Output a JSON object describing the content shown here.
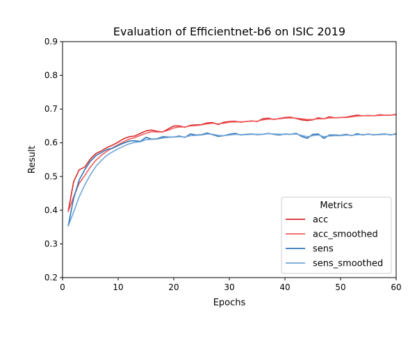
{
  "chart_data": {
    "type": "line",
    "title": "Evaluation of Efficientnet-b6 on ISIC 2019",
    "xlabel": "Epochs",
    "ylabel": "Result",
    "xlim": [
      0,
      60
    ],
    "ylim": [
      0.2,
      0.9
    ],
    "xticks": [
      0,
      10,
      20,
      30,
      40,
      50,
      60
    ],
    "yticks": [
      0.2,
      0.3,
      0.4,
      0.5,
      0.6,
      0.7,
      0.8,
      0.9
    ],
    "grid": false,
    "legend": {
      "title": "Metrics",
      "placement": "lower-right"
    },
    "x": [
      1,
      2,
      3,
      4,
      5,
      6,
      7,
      8,
      9,
      10,
      11,
      12,
      13,
      14,
      15,
      16,
      17,
      18,
      19,
      20,
      21,
      22,
      23,
      24,
      25,
      26,
      27,
      28,
      29,
      30,
      31,
      32,
      33,
      34,
      35,
      36,
      37,
      38,
      39,
      40,
      41,
      42,
      43,
      44,
      45,
      46,
      47,
      48,
      49,
      50,
      51,
      52,
      53,
      54,
      55,
      56,
      57,
      58,
      59,
      60
    ],
    "series": [
      {
        "name": "acc",
        "color": "#d62728",
        "values": [
          0.395,
          0.485,
          0.52,
          0.528,
          0.552,
          0.568,
          0.576,
          0.586,
          0.593,
          0.602,
          0.612,
          0.618,
          0.62,
          0.628,
          0.635,
          0.638,
          0.634,
          0.632,
          0.641,
          0.65,
          0.65,
          0.646,
          0.652,
          0.653,
          0.654,
          0.659,
          0.66,
          0.654,
          0.661,
          0.663,
          0.664,
          0.661,
          0.663,
          0.665,
          0.663,
          0.671,
          0.673,
          0.669,
          0.672,
          0.675,
          0.676,
          0.672,
          0.668,
          0.666,
          0.668,
          0.674,
          0.671,
          0.677,
          0.674,
          0.675,
          0.676,
          0.679,
          0.682,
          0.68,
          0.681,
          0.68,
          0.683,
          0.682,
          0.682,
          0.684
        ]
      },
      {
        "name": "acc_smoothed",
        "color": "#f0595b",
        "values": [
          0.395,
          0.44,
          0.48,
          0.503,
          0.528,
          0.548,
          0.563,
          0.575,
          0.585,
          0.594,
          0.603,
          0.611,
          0.615,
          0.622,
          0.628,
          0.633,
          0.632,
          0.632,
          0.637,
          0.644,
          0.647,
          0.647,
          0.65,
          0.651,
          0.653,
          0.656,
          0.658,
          0.656,
          0.658,
          0.661,
          0.662,
          0.662,
          0.663,
          0.664,
          0.664,
          0.668,
          0.67,
          0.67,
          0.671,
          0.673,
          0.674,
          0.673,
          0.671,
          0.669,
          0.669,
          0.671,
          0.671,
          0.674,
          0.674,
          0.675,
          0.675,
          0.677,
          0.679,
          0.68,
          0.68,
          0.68,
          0.681,
          0.682,
          0.682,
          0.683
        ]
      },
      {
        "name": "sens",
        "color": "#2f74b5",
        "values": [
          0.352,
          0.435,
          0.49,
          0.52,
          0.545,
          0.562,
          0.571,
          0.58,
          0.584,
          0.592,
          0.599,
          0.605,
          0.606,
          0.604,
          0.616,
          0.611,
          0.612,
          0.618,
          0.617,
          0.617,
          0.62,
          0.616,
          0.626,
          0.623,
          0.624,
          0.629,
          0.624,
          0.619,
          0.621,
          0.625,
          0.628,
          0.623,
          0.625,
          0.626,
          0.624,
          0.625,
          0.628,
          0.625,
          0.623,
          0.626,
          0.625,
          0.628,
          0.619,
          0.613,
          0.625,
          0.626,
          0.613,
          0.623,
          0.623,
          0.622,
          0.625,
          0.621,
          0.627,
          0.623,
          0.626,
          0.623,
          0.625,
          0.626,
          0.623,
          0.627
        ]
      },
      {
        "name": "sens_smoothed",
        "color": "#6fa3d6",
        "values": [
          0.352,
          0.395,
          0.44,
          0.475,
          0.505,
          0.53,
          0.548,
          0.563,
          0.573,
          0.582,
          0.59,
          0.597,
          0.601,
          0.603,
          0.609,
          0.61,
          0.611,
          0.614,
          0.616,
          0.617,
          0.618,
          0.617,
          0.621,
          0.622,
          0.623,
          0.626,
          0.625,
          0.622,
          0.621,
          0.623,
          0.625,
          0.624,
          0.624,
          0.625,
          0.625,
          0.625,
          0.627,
          0.626,
          0.625,
          0.625,
          0.625,
          0.626,
          0.622,
          0.618,
          0.621,
          0.623,
          0.618,
          0.62,
          0.621,
          0.621,
          0.623,
          0.622,
          0.624,
          0.624,
          0.625,
          0.624,
          0.624,
          0.625,
          0.624,
          0.625
        ]
      }
    ]
  }
}
